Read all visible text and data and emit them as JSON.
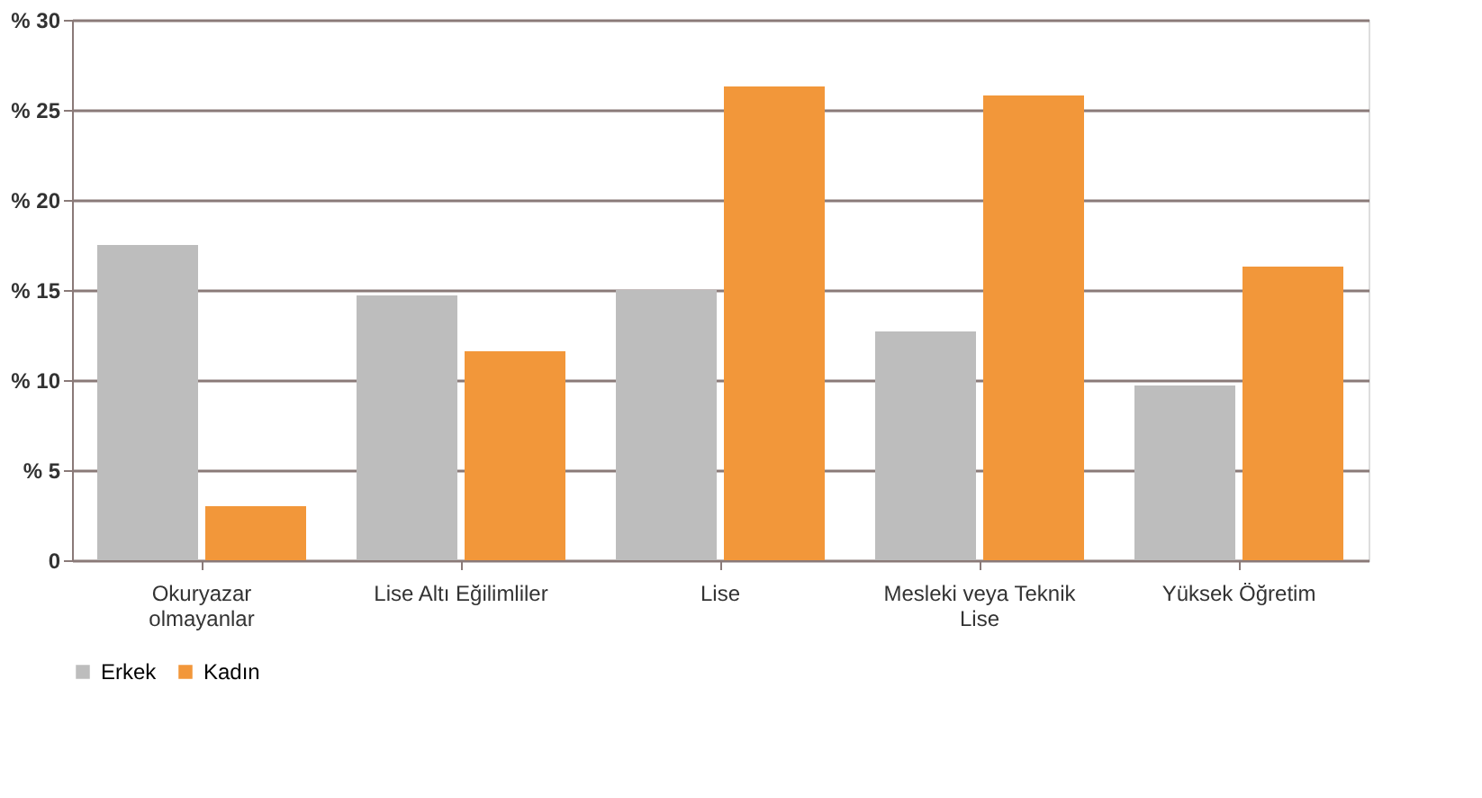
{
  "chart_data": {
    "type": "bar",
    "categories": [
      "Okuryazar\nolmayanlar",
      "Lise Altı Eğilimliler",
      "Lise",
      "Mesleki veya Teknik\nLise",
      "Yüksek Öğretim"
    ],
    "series": [
      {
        "name": "Erkek",
        "color": "#bdbdbd",
        "values": [
          17.5,
          14.7,
          15.0,
          12.7,
          9.7
        ]
      },
      {
        "name": "Kadın",
        "color": "#f2973a",
        "values": [
          3.0,
          11.6,
          26.3,
          25.8,
          16.3
        ]
      }
    ],
    "ylim": [
      0,
      30
    ],
    "yticks": [
      0,
      {
        "value": 5,
        "label": "% 5"
      },
      {
        "value": 10,
        "label": "% 10"
      },
      {
        "value": 15,
        "label": "% 15"
      },
      {
        "value": 20,
        "label": "% 20"
      },
      {
        "value": 25,
        "label": "% 25"
      },
      {
        "value": 30,
        "label": "% 30"
      }
    ],
    "grid": "y",
    "legend": "bottom"
  }
}
